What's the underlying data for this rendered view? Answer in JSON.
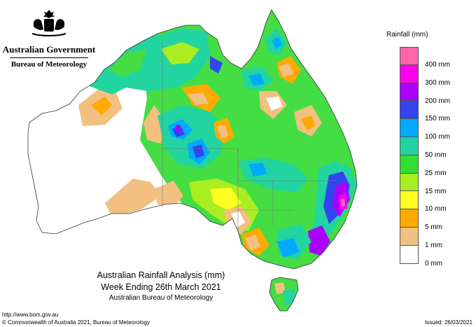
{
  "header": {
    "government": "Australian Government",
    "bureau": "Bureau of Meteorology"
  },
  "legend": {
    "title": "Rainfall (mm)",
    "bins": [
      {
        "color": "#ff66aa",
        "label": ""
      },
      {
        "color": "#ff00ee",
        "label": "400 mm"
      },
      {
        "color": "#aa00ff",
        "label": "300 mm"
      },
      {
        "color": "#3344ee",
        "label": "200 mm"
      },
      {
        "color": "#00aaff",
        "label": "150 mm"
      },
      {
        "color": "#22d4a0",
        "label": "100 mm"
      },
      {
        "color": "#33dd33",
        "label": "50 mm"
      },
      {
        "color": "#aaee22",
        "label": "25 mm"
      },
      {
        "color": "#ffff22",
        "label": "15 mm"
      },
      {
        "color": "#ffaa00",
        "label": "10 mm"
      },
      {
        "color": "#f2c080",
        "label": "5 mm"
      },
      {
        "color": "#ffffff",
        "label": "1 mm"
      }
    ],
    "bottom_label": "0 mm"
  },
  "title": {
    "line1": "Australian Rainfall Analysis (mm)",
    "line2": "Week Ending 26th March 2021",
    "line3": "Australian Bureau of Meteorology"
  },
  "footer": {
    "url": "http://www.bom.gov.au",
    "copyright": "© Commonwealth of Australia 2021, Bureau of Meteorology",
    "issued": "Issued: 26/03/2021"
  }
}
